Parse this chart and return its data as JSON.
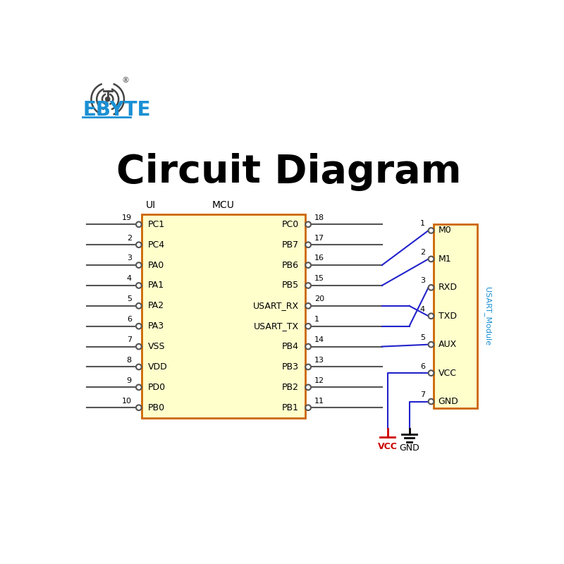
{
  "title": "Circuit Diagram",
  "title_fontsize": 40,
  "bg_color": "#ffffff",
  "mcu_box_color": "#ffffcc",
  "mcu_box_edge": "#cc6600",
  "module_box_color": "#ffffcc",
  "module_box_edge": "#cc6600",
  "ebyte_color": "#1a90d4",
  "vcc_color": "#cc0000",
  "wire_color_gray": "#555555",
  "wire_color_blue": "#2222cc",
  "left_pins": [
    {
      "num": "19",
      "label": "PC1"
    },
    {
      "num": "2",
      "label": "PC4"
    },
    {
      "num": "3",
      "label": "PA0"
    },
    {
      "num": "4",
      "label": "PA1"
    },
    {
      "num": "5",
      "label": "PA2"
    },
    {
      "num": "6",
      "label": "PA3"
    },
    {
      "num": "7",
      "label": "VSS"
    },
    {
      "num": "8",
      "label": "VDD"
    },
    {
      "num": "9",
      "label": "PD0"
    },
    {
      "num": "10",
      "label": "PB0"
    }
  ],
  "right_pins": [
    {
      "num": "18",
      "label": "PC0",
      "connected": false
    },
    {
      "num": "17",
      "label": "PB7",
      "connected": false
    },
    {
      "num": "16",
      "label": "PB6",
      "connected": true,
      "mod_pin": 0
    },
    {
      "num": "15",
      "label": "PB5",
      "connected": true,
      "mod_pin": 1
    },
    {
      "num": "20",
      "label": "USART_RX",
      "connected": true,
      "mod_pin": 3,
      "cross": true
    },
    {
      "num": "1",
      "label": "USART_TX",
      "connected": true,
      "mod_pin": 2,
      "cross": true
    },
    {
      "num": "14",
      "label": "PB4",
      "connected": true,
      "mod_pin": 4
    },
    {
      "num": "13",
      "label": "PB3",
      "connected": false
    },
    {
      "num": "12",
      "label": "PB2",
      "connected": false
    },
    {
      "num": "11",
      "label": "PB1",
      "connected": false
    }
  ],
  "module_pins": [
    {
      "num": "1",
      "label": "M0"
    },
    {
      "num": "2",
      "label": "M1"
    },
    {
      "num": "3",
      "label": "RXD"
    },
    {
      "num": "4",
      "label": "TXD"
    },
    {
      "num": "5",
      "label": "AUX"
    },
    {
      "num": "6",
      "label": "VCC"
    },
    {
      "num": "7",
      "label": "GND"
    }
  ]
}
